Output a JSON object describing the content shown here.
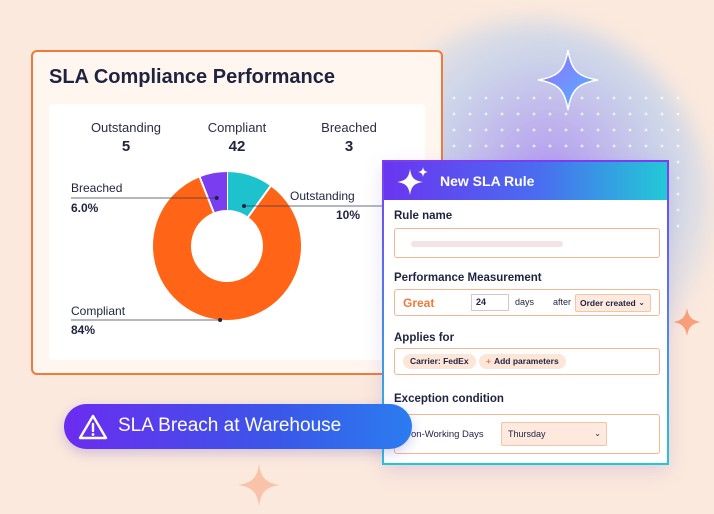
{
  "dashboard": {
    "title": "SLA Compliance Performance",
    "stats": [
      {
        "label": "Outstanding",
        "value": "5"
      },
      {
        "label": "Compliant",
        "value": "42"
      },
      {
        "label": "Breached",
        "value": "3"
      }
    ]
  },
  "chart_data": {
    "type": "pie",
    "donut": true,
    "categories": [
      "Outstanding",
      "Compliant",
      "Breached"
    ],
    "values": [
      10,
      84,
      6
    ],
    "value_labels": [
      "10%",
      "84%",
      "6.0%"
    ],
    "colors": [
      "#1ec2cc",
      "#ff6417",
      "#7b3df0"
    ]
  },
  "rule_panel": {
    "title": "New SLA Rule",
    "rule_name_label": "Rule name",
    "performance_label": "Performance Measurement",
    "performance_value": "Great",
    "days_value": "24",
    "days_label": "days",
    "after_label": "after",
    "after_select": "Order created",
    "applies_label": "Applies for",
    "carrier_chip": "Carrier: FedEx",
    "add_params": "Add parameters",
    "exception_label": "Exception condition",
    "exception_text": "on-Working Days",
    "exception_select": "Thursday"
  },
  "alert": {
    "text": "SLA Breach at Warehouse",
    "icon": "warning-triangle-icon"
  },
  "colors": {
    "accent_orange": "#f07a3c",
    "purple": "#6a35f0",
    "teal": "#22c9d6"
  }
}
